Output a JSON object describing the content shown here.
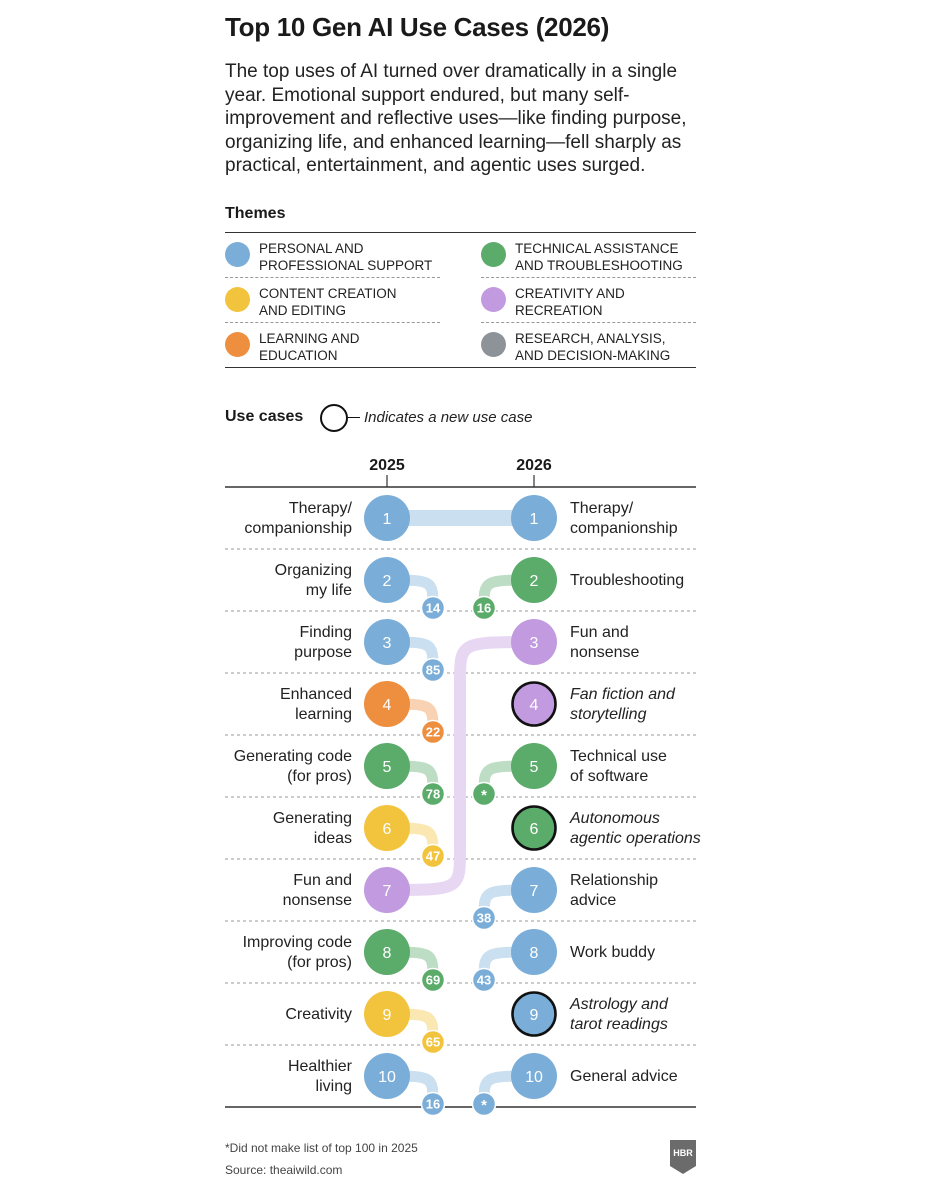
{
  "title": "Top 10 Gen AI Use Cases (2026)",
  "subtitle": "The top uses of AI turned over dramatically in a single year. Emotional support endured, but many self-improvement and reflective uses—like finding purpose, organizing life, and enhanced learning—fell sharply as practical, entertainment, and agentic uses surged.",
  "themes_heading": "Themes",
  "use_cases_heading": "Use cases",
  "new_use_case_note": "Indicates a new use case",
  "footnote": "*Did not make list of top 100 in 2025",
  "source": "Source: theaiwild.com",
  "logo_text": "HBR",
  "colors": {
    "personal": "#7aaed8",
    "technical": "#5bab6b",
    "content": "#f2c43d",
    "creativity": "#c29ae0",
    "learning": "#ee8e3f",
    "research": "#8d9399"
  },
  "themes": [
    {
      "key": "personal",
      "label_line1": "Personal and",
      "label_line2": "professional support"
    },
    {
      "key": "technical",
      "label_line1": "Technical assistance",
      "label_line2": "and troubleshooting"
    },
    {
      "key": "content",
      "label_line1": "Content creation",
      "label_line2": "and editing"
    },
    {
      "key": "creativity",
      "label_line1": "Creativity and",
      "label_line2": "recreation"
    },
    {
      "key": "learning",
      "label_line1": "Learning and",
      "label_line2": "education"
    },
    {
      "key": "research",
      "label_line1": "Research, analysis,",
      "label_line2": "and decision-making"
    }
  ],
  "chart_data": {
    "type": "table",
    "columns": [
      "2025",
      "2026"
    ],
    "rows_2025": [
      {
        "rank": 1,
        "label": [
          "Therapy/",
          "companionship"
        ],
        "theme": "personal",
        "rank_2026": "1"
      },
      {
        "rank": 2,
        "label": [
          "Organizing",
          "my life"
        ],
        "theme": "personal",
        "rank_2026": "14"
      },
      {
        "rank": 3,
        "label": [
          "Finding",
          "purpose"
        ],
        "theme": "personal",
        "rank_2026": "85"
      },
      {
        "rank": 4,
        "label": [
          "Enhanced",
          "learning"
        ],
        "theme": "learning",
        "rank_2026": "22"
      },
      {
        "rank": 5,
        "label": [
          "Generating code",
          "(for pros)"
        ],
        "theme": "technical",
        "rank_2026": "78"
      },
      {
        "rank": 6,
        "label": [
          "Generating",
          "ideas"
        ],
        "theme": "content",
        "rank_2026": "47"
      },
      {
        "rank": 7,
        "label": [
          "Fun and",
          "nonsense"
        ],
        "theme": "creativity",
        "rank_2026": "3"
      },
      {
        "rank": 8,
        "label": [
          "Improving code",
          "(for pros)"
        ],
        "theme": "technical",
        "rank_2026": "69"
      },
      {
        "rank": 9,
        "label": [
          "Creativity",
          ""
        ],
        "theme": "content",
        "rank_2026": "65"
      },
      {
        "rank": 10,
        "label": [
          "Healthier",
          "living"
        ],
        "theme": "personal",
        "rank_2026": "16"
      }
    ],
    "rows_2026": [
      {
        "rank": 1,
        "label": [
          "Therapy/",
          "companionship"
        ],
        "theme": "personal",
        "rank_2025": "1",
        "new": false
      },
      {
        "rank": 2,
        "label": [
          "Troubleshooting",
          ""
        ],
        "theme": "technical",
        "rank_2025": "16",
        "new": false
      },
      {
        "rank": 3,
        "label": [
          "Fun and",
          "nonsense"
        ],
        "theme": "creativity",
        "rank_2025": "7",
        "new": false
      },
      {
        "rank": 4,
        "label": [
          "Fan fiction and",
          "storytelling"
        ],
        "theme": "creativity",
        "rank_2025": "",
        "new": true
      },
      {
        "rank": 5,
        "label": [
          "Technical use",
          "of software"
        ],
        "theme": "technical",
        "rank_2025": "*",
        "new": false
      },
      {
        "rank": 6,
        "label": [
          "Autonomous",
          "agentic operations"
        ],
        "theme": "technical",
        "rank_2025": "",
        "new": true
      },
      {
        "rank": 7,
        "label": [
          "Relationship",
          "advice"
        ],
        "theme": "personal",
        "rank_2025": "38",
        "new": false
      },
      {
        "rank": 8,
        "label": [
          "Work buddy",
          ""
        ],
        "theme": "personal",
        "rank_2025": "43",
        "new": false
      },
      {
        "rank": 9,
        "label": [
          "Astrology and",
          "tarot readings"
        ],
        "theme": "personal",
        "rank_2025": "",
        "new": true
      },
      {
        "rank": 10,
        "label": [
          "General advice",
          ""
        ],
        "theme": "personal",
        "rank_2025": "*",
        "new": false
      }
    ]
  }
}
